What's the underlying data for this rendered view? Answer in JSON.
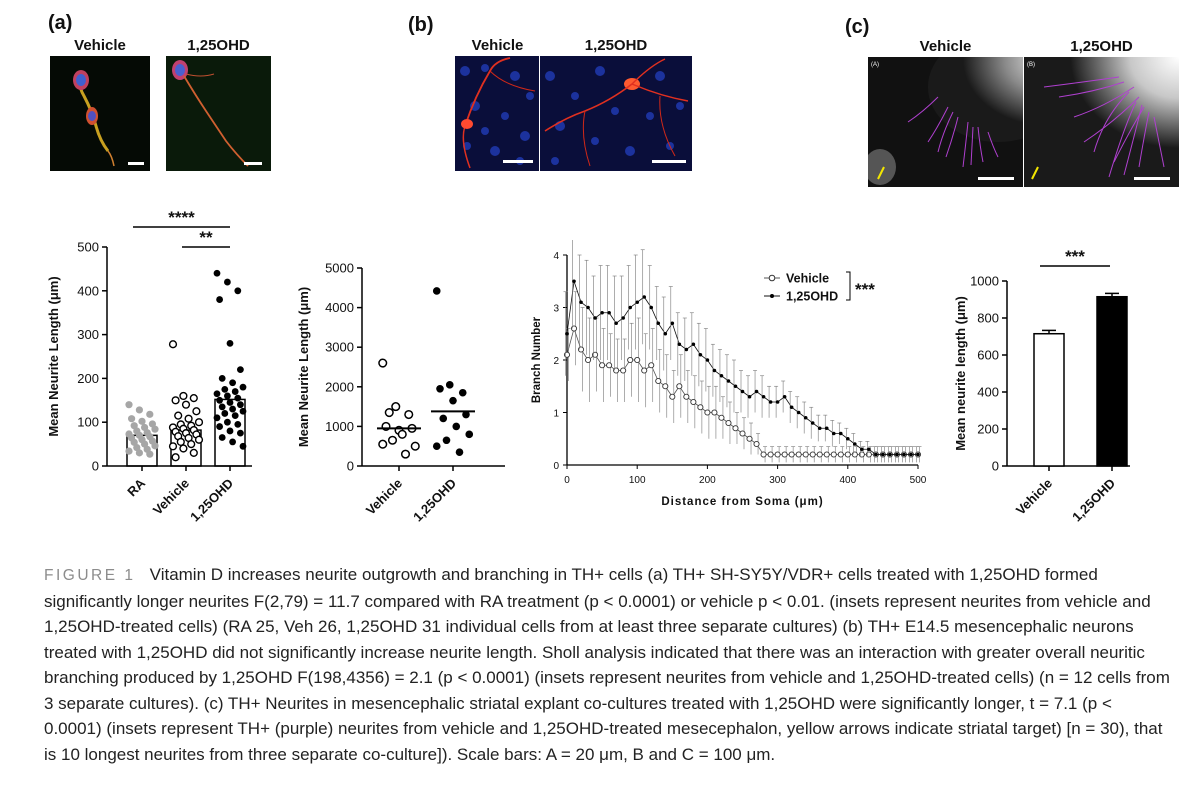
{
  "panels": {
    "a": {
      "label": "(a)",
      "inset_labels": [
        "Vehicle",
        "1,25OHD"
      ]
    },
    "b": {
      "label": "(b)",
      "inset_labels": [
        "Vehicle",
        "1,25OHD"
      ]
    },
    "c": {
      "label": "(c)",
      "inset_labels": [
        "Vehicle",
        "1,25OHD"
      ],
      "inset_sublabels": [
        "(A)",
        "(B)"
      ]
    }
  },
  "colors": {
    "gray_points": "#a6a6a6",
    "black": "#000000",
    "micro_red": "#d83020",
    "micro_blue": "#1a2d8c",
    "purple": "#a040c0",
    "yellow": "#f2e600"
  },
  "chart_data": [
    {
      "id": "a-chart",
      "type": "bar",
      "ylabel": "Mean Neurite Length (μm)",
      "xlabel": "",
      "ylim": [
        0,
        500
      ],
      "yticks": [
        0,
        100,
        200,
        300,
        400,
        500
      ],
      "categories": [
        "RA",
        "Vehicle",
        "1,25OHD"
      ],
      "values": [
        70,
        82,
        152
      ],
      "significance": [
        {
          "label": "****",
          "from": "RA",
          "to": "1,25OHD"
        },
        {
          "label": "**",
          "from": "Vehicle",
          "to": "1,25OHD"
        }
      ],
      "points": {
        "RA": [
          140,
          128,
          118,
          108,
          102,
          96,
          92,
          88,
          84,
          80,
          76,
          73,
          70,
          67,
          64,
          60,
          57,
          54,
          50,
          46,
          42,
          38,
          34,
          30,
          27
        ],
        "Vehicle": [
          278,
          160,
          155,
          150,
          140,
          125,
          115,
          108,
          100,
          95,
          92,
          88,
          85,
          82,
          78,
          75,
          72,
          68,
          64,
          60,
          55,
          50,
          45,
          40,
          30,
          20
        ],
        "1,25OHD": [
          440,
          420,
          400,
          380,
          280,
          220,
          200,
          190,
          180,
          175,
          170,
          165,
          160,
          155,
          150,
          145,
          140,
          135,
          130,
          125,
          120,
          115,
          110,
          100,
          95,
          90,
          80,
          75,
          65,
          55,
          45
        ]
      }
    },
    {
      "id": "b-scatter",
      "type": "scatter",
      "ylabel": "Mean Neurite Length (μm)",
      "xlabel": "",
      "ylim": [
        0,
        5000
      ],
      "yticks": [
        0,
        1000,
        2000,
        3000,
        4000,
        5000
      ],
      "categories": [
        "Vehicle",
        "1,25OHD"
      ],
      "means": [
        950,
        1380
      ],
      "points": {
        "Vehicle": [
          2600,
          1500,
          1300,
          1000,
          900,
          950,
          1350,
          800,
          500,
          650,
          300,
          550
        ],
        "1,25OHD": [
          4420,
          2050,
          1850,
          1950,
          1650,
          1300,
          1200,
          1000,
          800,
          650,
          350,
          500
        ]
      }
    },
    {
      "id": "b-sholl",
      "type": "line",
      "xlabel": "Distance from Soma (μm)",
      "ylabel": "Branch Number",
      "xlim": [
        0,
        500
      ],
      "ylim": [
        0,
        4
      ],
      "xticks": [
        0,
        100,
        200,
        300,
        400,
        500
      ],
      "yticks": [
        0,
        1,
        2,
        3,
        4
      ],
      "legend_position": "top-right",
      "significance": "***",
      "x": [
        0,
        10,
        20,
        30,
        40,
        50,
        60,
        70,
        80,
        90,
        100,
        110,
        120,
        130,
        140,
        150,
        160,
        170,
        180,
        190,
        200,
        210,
        220,
        230,
        240,
        250,
        260,
        270,
        280,
        290,
        300,
        310,
        320,
        330,
        340,
        350,
        360,
        370,
        380,
        390,
        400,
        410,
        420,
        430,
        440,
        450,
        460,
        470,
        480,
        490,
        500
      ],
      "series": [
        {
          "name": "Vehicle",
          "marker": "open-circle",
          "values": [
            2.1,
            2.6,
            2.2,
            2.0,
            2.1,
            1.9,
            1.9,
            1.8,
            1.8,
            2.0,
            2.0,
            1.8,
            1.9,
            1.6,
            1.5,
            1.3,
            1.5,
            1.3,
            1.2,
            1.1,
            1.0,
            1.0,
            0.9,
            0.8,
            0.7,
            0.6,
            0.5,
            0.4,
            0.2,
            0.2,
            0.2,
            0.2,
            0.2,
            0.2,
            0.2,
            0.2,
            0.2,
            0.2,
            0.2,
            0.2,
            0.2,
            0.2,
            0.2,
            0.2,
            0.2,
            0.2,
            0.2,
            0.2,
            0.2,
            0.2,
            0.2
          ],
          "error": [
            0.5,
            0.7,
            0.8,
            0.8,
            0.7,
            0.7,
            0.6,
            0.6,
            0.6,
            0.7,
            0.8,
            0.7,
            0.7,
            0.6,
            0.6,
            0.5,
            0.6,
            0.5,
            0.5,
            0.5,
            0.5,
            0.5,
            0.4,
            0.4,
            0.3,
            0.3,
            0.3,
            0.2,
            0.15,
            0.15,
            0.15,
            0.15,
            0.15,
            0.15,
            0.15,
            0.15,
            0.15,
            0.15,
            0.15,
            0.15,
            0.15,
            0.15,
            0.15,
            0.15,
            0.15,
            0.15,
            0.15,
            0.15,
            0.15,
            0.15,
            0.15
          ]
        },
        {
          "name": "1,25OHD",
          "marker": "filled-dot",
          "values": [
            2.5,
            3.5,
            3.1,
            3.0,
            2.8,
            2.9,
            2.9,
            2.7,
            2.8,
            3.0,
            3.1,
            3.2,
            3.0,
            2.7,
            2.5,
            2.7,
            2.3,
            2.2,
            2.3,
            2.1,
            2.0,
            1.8,
            1.7,
            1.6,
            1.5,
            1.4,
            1.3,
            1.4,
            1.3,
            1.2,
            1.2,
            1.3,
            1.1,
            1.0,
            0.9,
            0.8,
            0.7,
            0.7,
            0.6,
            0.6,
            0.5,
            0.4,
            0.3,
            0.3,
            0.2,
            0.2,
            0.2,
            0.2,
            0.2,
            0.2,
            0.2
          ],
          "error": [
            0.8,
            0.9,
            0.9,
            0.9,
            0.8,
            0.9,
            0.9,
            0.9,
            0.8,
            0.8,
            0.9,
            0.9,
            0.8,
            0.7,
            0.7,
            0.7,
            0.6,
            0.6,
            0.6,
            0.6,
            0.6,
            0.5,
            0.5,
            0.5,
            0.5,
            0.4,
            0.4,
            0.4,
            0.4,
            0.3,
            0.3,
            0.3,
            0.3,
            0.3,
            0.3,
            0.3,
            0.25,
            0.25,
            0.25,
            0.2,
            0.2,
            0.2,
            0.15,
            0.15,
            0.15,
            0.15,
            0.15,
            0.15,
            0.15,
            0.15,
            0.15
          ]
        }
      ]
    },
    {
      "id": "c-chart",
      "type": "bar",
      "ylabel": "Mean neurite length (μm)",
      "xlabel": "",
      "ylim": [
        0,
        1000
      ],
      "yticks": [
        0,
        200,
        400,
        600,
        800,
        1000
      ],
      "categories": [
        "Vehicle",
        "1,25OHD"
      ],
      "values": [
        715,
        915
      ],
      "errors": [
        18,
        18
      ],
      "bar_fills": [
        "#ffffff",
        "#000000"
      ],
      "significance": [
        {
          "label": "***",
          "from": "Vehicle",
          "to": "1,25OHD"
        }
      ]
    }
  ],
  "caption": {
    "figure_label": "FIGURE 1",
    "text": "Vitamin D increases neurite outgrowth and branching in TH+ cells (a) TH+ SH-SY5Y/VDR+ cells treated with 1,25OHD formed significantly longer neurites F(2,79) = 11.7 compared with RA treatment (p < 0.0001) or vehicle p < 0.01. (insets represent neurites from vehicle and 1,25OHD-treated cells) (RA 25, Veh 26, 1,25OHD 31 individual cells from at least three separate cultures) (b) TH+ E14.5 mesencephalic neurons treated with 1,25OHD did not significantly increase neurite length. Sholl analysis indicated that there was an interaction with greater overall neuritic branching produced by 1,25OHD F(198,4356) = 2.1 (p < 0.0001) (insets represent neurites from vehicle and 1,25OHD-treated cells) (n = 12 cells from 3 separate cultures). (c) TH+ Neurites in mesencephalic striatal explant co-cultures treated with 1,25OHD were significantly longer, t = 7.1 (p < 0.0001) (insets represent TH+ (purple) neurites from vehicle and 1,25OHD-treated mesecephalon, yellow arrows indicate striatal target) [n = 30), that is 10 longest neurites from three separate co-culture]). Scale bars: A = 20 μm, B and C = 100 μm."
  }
}
